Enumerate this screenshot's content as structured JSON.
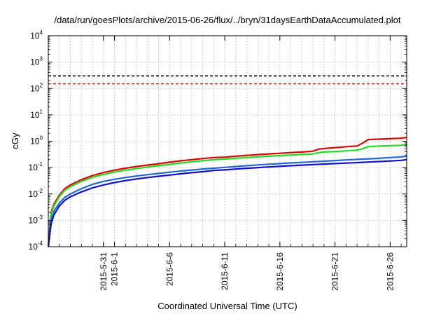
{
  "chart_data": {
    "type": "line",
    "title": "/data/run/goesPlots/archive/2015-06-26/flux/../bryn/31daysEarthDataAccumulated.plot",
    "xlabel": "Coordinated Universal Time (UTC)",
    "ylabel": "cGy",
    "yscale": "log",
    "ylim": [
      0.0001,
      10000
    ],
    "xlim": [
      "2015-05-26",
      "2015-06-27 12:00"
    ],
    "grid": true,
    "x_ticks": [
      "2015-5-31",
      "2015-6-1",
      "2015-6-6",
      "2015-6-11",
      "2015-6-16",
      "2015-6-21",
      "2015-6-26"
    ],
    "y_ticks": [
      {
        "base": "10",
        "exp": "-4"
      },
      {
        "base": "10",
        "exp": "-3"
      },
      {
        "base": "10",
        "exp": "-2"
      },
      {
        "base": "10",
        "exp": "-1"
      },
      {
        "base": "10",
        "exp": "0"
      },
      {
        "base": "10",
        "exp": "1"
      },
      {
        "base": "10",
        "exp": "2"
      },
      {
        "base": "10",
        "exp": "3"
      },
      {
        "base": "10",
        "exp": "4"
      }
    ],
    "reference_lines": [
      {
        "value": 300,
        "color": "#000000",
        "style": "dashed"
      },
      {
        "value": 150,
        "color": "#ff0000",
        "style": "dashed"
      }
    ],
    "series": [
      {
        "color": "#dd0000",
        "points": [
          [
            "2015-05-26",
            0.0001
          ],
          [
            "2015-05-26 06:00",
            0.002
          ],
          [
            "2015-05-26 12:00",
            0.004
          ],
          [
            "2015-05-27",
            0.009
          ],
          [
            "2015-05-27 12:00",
            0.016
          ],
          [
            "2015-05-28",
            0.022
          ],
          [
            "2015-05-29",
            0.035
          ],
          [
            "2015-05-30",
            0.05
          ],
          [
            "2015-05-31",
            0.065
          ],
          [
            "2015-06-01",
            0.08
          ],
          [
            "2015-06-02",
            0.095
          ],
          [
            "2015-06-03",
            0.11
          ],
          [
            "2015-06-04",
            0.125
          ],
          [
            "2015-06-05",
            0.14
          ],
          [
            "2015-06-06",
            0.16
          ],
          [
            "2015-06-07",
            0.18
          ],
          [
            "2015-06-08",
            0.2
          ],
          [
            "2015-06-09",
            0.22
          ],
          [
            "2015-06-10",
            0.24
          ],
          [
            "2015-06-11",
            0.25
          ],
          [
            "2015-06-12",
            0.27
          ],
          [
            "2015-06-13",
            0.29
          ],
          [
            "2015-06-14",
            0.31
          ],
          [
            "2015-06-15",
            0.33
          ],
          [
            "2015-06-16",
            0.35
          ],
          [
            "2015-06-17",
            0.37
          ],
          [
            "2015-06-18",
            0.39
          ],
          [
            "2015-06-19",
            0.42
          ],
          [
            "2015-06-19 12:00",
            0.5
          ],
          [
            "2015-06-20",
            0.53
          ],
          [
            "2015-06-21",
            0.57
          ],
          [
            "2015-06-22",
            0.62
          ],
          [
            "2015-06-23",
            0.66
          ],
          [
            "2015-06-23 12:00",
            0.85
          ],
          [
            "2015-06-24",
            1.15
          ],
          [
            "2015-06-25",
            1.2
          ],
          [
            "2015-06-26",
            1.25
          ],
          [
            "2015-06-27",
            1.3
          ],
          [
            "2015-06-27 12:00",
            1.4
          ]
        ]
      },
      {
        "color": "#22dd22",
        "points": [
          [
            "2015-05-26",
            0.0001
          ],
          [
            "2015-05-26 06:00",
            0.0017
          ],
          [
            "2015-05-26 12:00",
            0.0035
          ],
          [
            "2015-05-27",
            0.008
          ],
          [
            "2015-05-27 12:00",
            0.014
          ],
          [
            "2015-05-28",
            0.019
          ],
          [
            "2015-05-29",
            0.03
          ],
          [
            "2015-05-30",
            0.043
          ],
          [
            "2015-05-31",
            0.055
          ],
          [
            "2015-06-01",
            0.068
          ],
          [
            "2015-06-02",
            0.08
          ],
          [
            "2015-06-03",
            0.092
          ],
          [
            "2015-06-04",
            0.105
          ],
          [
            "2015-06-05",
            0.118
          ],
          [
            "2015-06-06",
            0.132
          ],
          [
            "2015-06-07",
            0.148
          ],
          [
            "2015-06-08",
            0.165
          ],
          [
            "2015-06-09",
            0.182
          ],
          [
            "2015-06-10",
            0.2
          ],
          [
            "2015-06-11",
            0.21
          ],
          [
            "2015-06-12",
            0.225
          ],
          [
            "2015-06-13",
            0.24
          ],
          [
            "2015-06-14",
            0.255
          ],
          [
            "2015-06-15",
            0.27
          ],
          [
            "2015-06-16",
            0.285
          ],
          [
            "2015-06-17",
            0.3
          ],
          [
            "2015-06-18",
            0.315
          ],
          [
            "2015-06-19",
            0.33
          ],
          [
            "2015-06-19 12:00",
            0.37
          ],
          [
            "2015-06-20",
            0.39
          ],
          [
            "2015-06-21",
            0.41
          ],
          [
            "2015-06-22",
            0.43
          ],
          [
            "2015-06-23",
            0.46
          ],
          [
            "2015-06-23 12:00",
            0.52
          ],
          [
            "2015-06-24",
            0.62
          ],
          [
            "2015-06-25",
            0.66
          ],
          [
            "2015-06-26",
            0.68
          ],
          [
            "2015-06-27",
            0.7
          ],
          [
            "2015-06-27 12:00",
            0.75
          ]
        ]
      },
      {
        "color": "#2266dd",
        "points": [
          [
            "2015-05-26",
            0.0001
          ],
          [
            "2015-05-26 06:00",
            0.001
          ],
          [
            "2015-05-26 12:00",
            0.0022
          ],
          [
            "2015-05-27",
            0.0045
          ],
          [
            "2015-05-27 12:00",
            0.0075
          ],
          [
            "2015-05-28",
            0.01
          ],
          [
            "2015-05-29",
            0.016
          ],
          [
            "2015-05-30",
            0.023
          ],
          [
            "2015-05-31",
            0.03
          ],
          [
            "2015-06-01",
            0.036
          ],
          [
            "2015-06-02",
            0.042
          ],
          [
            "2015-06-03",
            0.048
          ],
          [
            "2015-06-04",
            0.054
          ],
          [
            "2015-06-05",
            0.06
          ],
          [
            "2015-06-06",
            0.067
          ],
          [
            "2015-06-07",
            0.074
          ],
          [
            "2015-06-08",
            0.081
          ],
          [
            "2015-06-09",
            0.088
          ],
          [
            "2015-06-10",
            0.095
          ],
          [
            "2015-06-11",
            0.102
          ],
          [
            "2015-06-12",
            0.11
          ],
          [
            "2015-06-13",
            0.118
          ],
          [
            "2015-06-14",
            0.126
          ],
          [
            "2015-06-15",
            0.134
          ],
          [
            "2015-06-16",
            0.142
          ],
          [
            "2015-06-17",
            0.15
          ],
          [
            "2015-06-18",
            0.158
          ],
          [
            "2015-06-19",
            0.166
          ],
          [
            "2015-06-20",
            0.175
          ],
          [
            "2015-06-21",
            0.185
          ],
          [
            "2015-06-22",
            0.195
          ],
          [
            "2015-06-23",
            0.205
          ],
          [
            "2015-06-24",
            0.215
          ],
          [
            "2015-06-25",
            0.225
          ],
          [
            "2015-06-26",
            0.24
          ],
          [
            "2015-06-27",
            0.255
          ],
          [
            "2015-06-27 12:00",
            0.27
          ]
        ]
      },
      {
        "color": "#1111cc",
        "points": [
          [
            "2015-05-26",
            0.0001
          ],
          [
            "2015-05-26 06:00",
            0.0007
          ],
          [
            "2015-05-26 12:00",
            0.0016
          ],
          [
            "2015-05-27",
            0.0035
          ],
          [
            "2015-05-27 12:00",
            0.0058
          ],
          [
            "2015-05-28",
            0.0078
          ],
          [
            "2015-05-29",
            0.012
          ],
          [
            "2015-05-30",
            0.017
          ],
          [
            "2015-05-31",
            0.022
          ],
          [
            "2015-06-01",
            0.027
          ],
          [
            "2015-06-02",
            0.032
          ],
          [
            "2015-06-03",
            0.037
          ],
          [
            "2015-06-04",
            0.042
          ],
          [
            "2015-06-05",
            0.047
          ],
          [
            "2015-06-06",
            0.052
          ],
          [
            "2015-06-07",
            0.058
          ],
          [
            "2015-06-08",
            0.064
          ],
          [
            "2015-06-09",
            0.07
          ],
          [
            "2015-06-10",
            0.078
          ],
          [
            "2015-06-11",
            0.082
          ],
          [
            "2015-06-12",
            0.088
          ],
          [
            "2015-06-13",
            0.094
          ],
          [
            "2015-06-14",
            0.1
          ],
          [
            "2015-06-15",
            0.106
          ],
          [
            "2015-06-16",
            0.112
          ],
          [
            "2015-06-17",
            0.118
          ],
          [
            "2015-06-18",
            0.124
          ],
          [
            "2015-06-19",
            0.13
          ],
          [
            "2015-06-20",
            0.136
          ],
          [
            "2015-06-21",
            0.142
          ],
          [
            "2015-06-22",
            0.148
          ],
          [
            "2015-06-23",
            0.155
          ],
          [
            "2015-06-24",
            0.162
          ],
          [
            "2015-06-25",
            0.17
          ],
          [
            "2015-06-26",
            0.178
          ],
          [
            "2015-06-27",
            0.188
          ],
          [
            "2015-06-27 12:00",
            0.2
          ]
        ]
      }
    ]
  }
}
